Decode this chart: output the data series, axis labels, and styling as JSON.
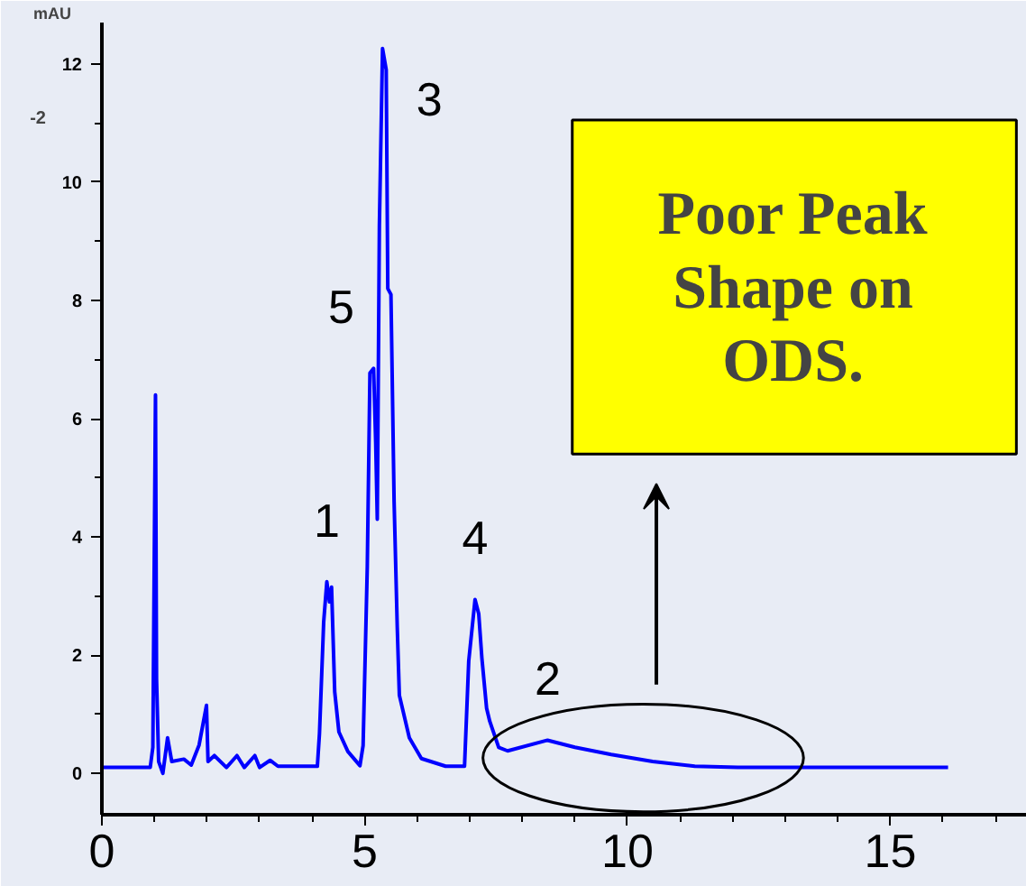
{
  "chart_data": {
    "type": "line",
    "ylabel": "mAU",
    "x": [
      0,
      0.92,
      0.97,
      1.02,
      1.04,
      1.08,
      1.16,
      1.25,
      1.33,
      1.56,
      1.7,
      1.85,
      1.99,
      2.02,
      2.14,
      2.37,
      2.57,
      2.71,
      2.91,
      3.0,
      3.2,
      3.35,
      4.1,
      4.14,
      4.22,
      4.28,
      4.33,
      4.37,
      4.43,
      4.51,
      4.68,
      4.91,
      4.97,
      5.05,
      5.1,
      5.17,
      5.21,
      5.24,
      5.28,
      5.34,
      5.41,
      5.44,
      5.5,
      5.56,
      5.62,
      5.66,
      5.85,
      6.08,
      6.54,
      6.9,
      6.98,
      7.1,
      7.17,
      7.23,
      7.32,
      7.38,
      7.55,
      7.72,
      8.48,
      9.0,
      9.69,
      10.48,
      11.28,
      12.1,
      16.1
    ],
    "series": [
      {
        "color": "#0000ff",
        "values": [
          0.1,
          0.1,
          0.44,
          6.4,
          1.6,
          0.2,
          0.0,
          0.6,
          0.2,
          0.24,
          0.14,
          0.48,
          1.15,
          0.2,
          0.3,
          0.1,
          0.3,
          0.1,
          0.3,
          0.1,
          0.22,
          0.12,
          0.12,
          0.67,
          2.56,
          3.24,
          2.9,
          3.15,
          1.38,
          0.7,
          0.37,
          0.13,
          0.47,
          3.5,
          6.77,
          6.85,
          5.59,
          4.3,
          9.27,
          12.26,
          11.9,
          8.2,
          8.1,
          4.6,
          2.47,
          1.32,
          0.6,
          0.25,
          0.12,
          0.12,
          1.9,
          2.94,
          2.7,
          1.95,
          1.1,
          0.88,
          0.44,
          0.38,
          0.56,
          0.44,
          0.32,
          0.2,
          0.12,
          0.1,
          0.1
        ]
      }
    ],
    "xlim": [
      0,
      17.6
    ],
    "xticks": [
      0,
      5,
      10,
      15
    ],
    "ylim": [
      -0.7,
      12.7
    ],
    "yticks": [
      0,
      2,
      4,
      6,
      8,
      10,
      12
    ],
    "grid": false,
    "legend": false,
    "marker": "none",
    "line_style": "solid",
    "annotations": [
      {
        "text": "1",
        "x": 4.28,
        "y": 3.24
      },
      {
        "text": "5",
        "x": 5.17,
        "y": 6.85
      },
      {
        "text": "3",
        "x": 5.34,
        "y": 12.26
      },
      {
        "text": "4",
        "x": 7.1,
        "y": 2.94
      },
      {
        "text": "2",
        "x": 8.48,
        "y": 0.56
      },
      "-2",
      "Poor Peak Shape on ODS."
    ]
  }
}
